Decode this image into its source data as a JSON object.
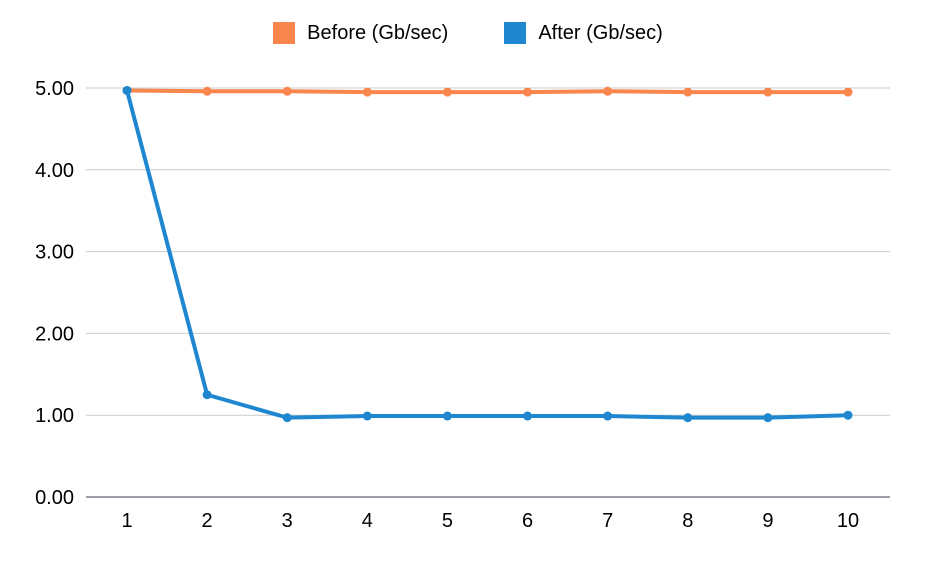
{
  "chart_data": {
    "type": "line",
    "x": [
      1,
      2,
      3,
      4,
      5,
      6,
      7,
      8,
      9,
      10
    ],
    "series": [
      {
        "name": "Before (Gb/sec)",
        "color": "#F8864D",
        "values": [
          4.97,
          4.96,
          4.96,
          4.95,
          4.95,
          4.95,
          4.96,
          4.95,
          4.95,
          4.95
        ]
      },
      {
        "name": "After (Gb/sec)",
        "color": "#1E87D0",
        "values": [
          4.97,
          1.25,
          0.97,
          0.99,
          0.99,
          0.99,
          0.99,
          0.97,
          0.97,
          1.0
        ]
      }
    ],
    "title": "",
    "xlabel": "",
    "ylabel": "",
    "ylim": [
      0,
      5
    ],
    "yticks": [
      0,
      1,
      2,
      3,
      4,
      5
    ],
    "ytick_labels": [
      "0.00",
      "1.00",
      "2.00",
      "3.00",
      "4.00",
      "5.00"
    ],
    "xtick_labels": [
      "1",
      "2",
      "3",
      "4",
      "5",
      "6",
      "7",
      "8",
      "9",
      "10"
    ],
    "grid": true,
    "legend_position": "top",
    "colors": {
      "gridline": "#cccccc",
      "axis_line": "#9aa0a6",
      "tick_label": "#000000",
      "background": "#ffffff"
    }
  }
}
